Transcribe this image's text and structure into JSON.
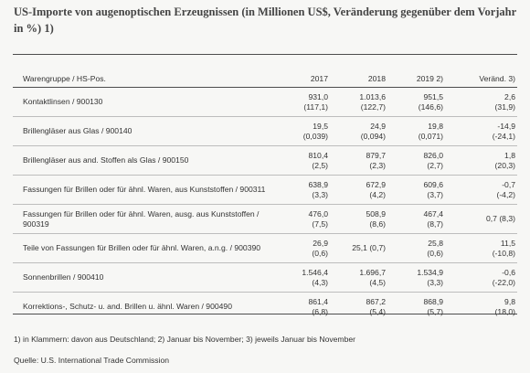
{
  "title": "US-Importe von augenoptischen Erzeugnissen (in Millionen US$, Veränderung gegenüber dem Vorjahr in %) 1)",
  "table": {
    "headers": {
      "group": "Warengruppe / HS-Pos.",
      "y2017": "2017",
      "y2018": "2018",
      "y2019": "2019 2)",
      "change": "Veränd. 3)"
    },
    "rows": [
      {
        "name": "Kontaktlinsen / 900130",
        "v2017": "931,0",
        "s2017": "(117,1)",
        "v2018": "1.013,6",
        "s2018": "(122,7)",
        "v2019": "951,5",
        "s2019": "(146,6)",
        "chg": "2,6",
        "schg": "(31,9)"
      },
      {
        "name": "Brillengläser aus Glas / 900140",
        "v2017": "19,5",
        "s2017": "(0,039)",
        "v2018": "24,9",
        "s2018": "(0,094)",
        "v2019": "19,8",
        "s2019": "(0,071)",
        "chg": "-14,9",
        "schg": "(-24,1)"
      },
      {
        "name": "Brillengläser aus and. Stoffen als Glas / 900150",
        "v2017": "810,4",
        "s2017": "(2,5)",
        "v2018": "879,7",
        "s2018": "(2,3)",
        "v2019": "826,0",
        "s2019": "(2,7)",
        "chg": "1,8",
        "schg": "(20,3)"
      },
      {
        "name": "Fassungen für Brillen oder für ähnl. Waren, aus Kunststoffen / 900311",
        "v2017": "638,9",
        "s2017": "(3,3)",
        "v2018": "672,9",
        "s2018": "(4,2)",
        "v2019": "609,6",
        "s2019": "(3,7)",
        "chg": "-0,7",
        "schg": "(-4,2)"
      },
      {
        "name": "Fassungen für Brillen oder für ähnl. Waren, ausg. aus Kunststoffen / 900319",
        "v2017": "476,0",
        "s2017": "(7,5)",
        "v2018": "508,9",
        "s2018": "(8,6)",
        "v2019": "467,4",
        "s2019": "(8,7)",
        "chg": "0,7 (8,3)",
        "schg": ""
      },
      {
        "name": "Teile von Fassungen für Brillen oder für ähnl. Waren, a.n.g. / 900390",
        "v2017": "26,9",
        "s2017": "(0,6)",
        "v2018": "25,1 (0,7)",
        "s2018": "",
        "v2019": "25,8",
        "s2019": "(0,6)",
        "chg": "11,5",
        "schg": "(-10,8)"
      },
      {
        "name": "Sonnenbrillen / 900410",
        "v2017": "1.546,4",
        "s2017": "(4,3)",
        "v2018": "1.696,7",
        "s2018": "(4,5)",
        "v2019": "1.534,9",
        "s2019": "(3,3)",
        "chg": "-0,6",
        "schg": "(-22,0)"
      },
      {
        "name": "Korrektions-, Schutz- u. and. Brillen u. ähnl. Waren / 900490",
        "v2017": "861,4",
        "s2017": "(6,8)",
        "v2018": "867,2",
        "s2018": "(5,4)",
        "v2019": "868,9",
        "s2019": "(5,7)",
        "chg": "9,8",
        "schg": "(18,0)"
      }
    ]
  },
  "footnote": "1) in Klammern: davon aus Deutschland; 2) Januar bis November; 3) jeweils Januar bis November",
  "source": "Quelle: U.S. International Trade Commission"
}
